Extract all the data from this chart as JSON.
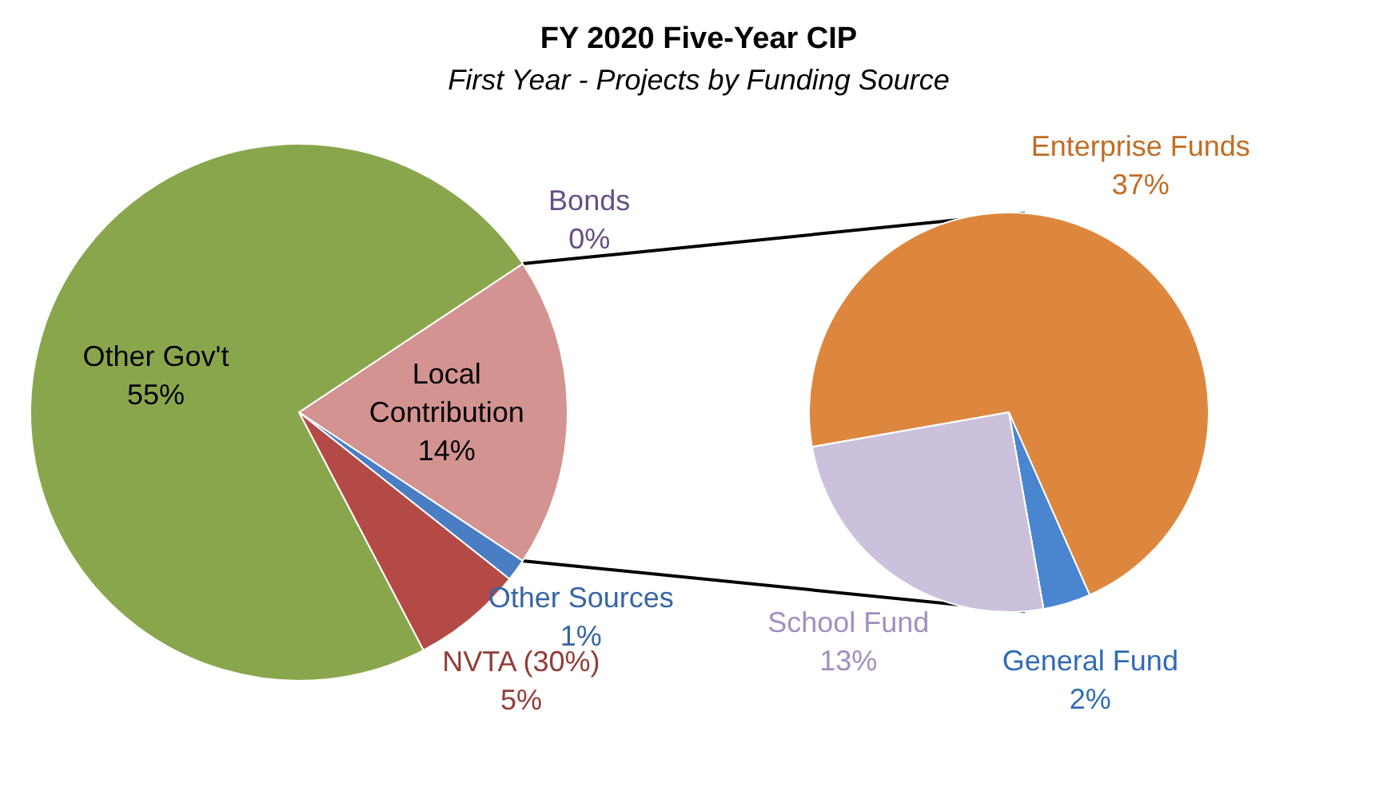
{
  "chart_data": [
    {
      "type": "pie",
      "title": "FY 2020 Five-Year  CIP",
      "subtitle": "First Year - Projects  by Funding Source",
      "categories": [
        "Local Contribution",
        "Other Sources",
        "NVTA (30%)",
        "Other Gov't",
        "Bonds"
      ],
      "values": [
        14,
        1,
        5,
        55,
        0
      ],
      "value_labels": [
        "14%",
        "1%",
        "5%",
        "55%",
        "0%"
      ],
      "colors": [
        "#d39391",
        "#4a7ec4",
        "#b34a45",
        "#8aa64d",
        "#8064a2"
      ]
    },
    {
      "type": "pie",
      "categories": [
        "Enterprise Funds",
        "General Fund",
        "School Fund"
      ],
      "values": [
        37,
        2,
        13
      ],
      "value_labels": [
        "37%",
        "2%",
        "13%"
      ],
      "colors": [
        "#dd873e",
        "#4a86d0",
        "#ccc1dc"
      ]
    }
  ]
}
